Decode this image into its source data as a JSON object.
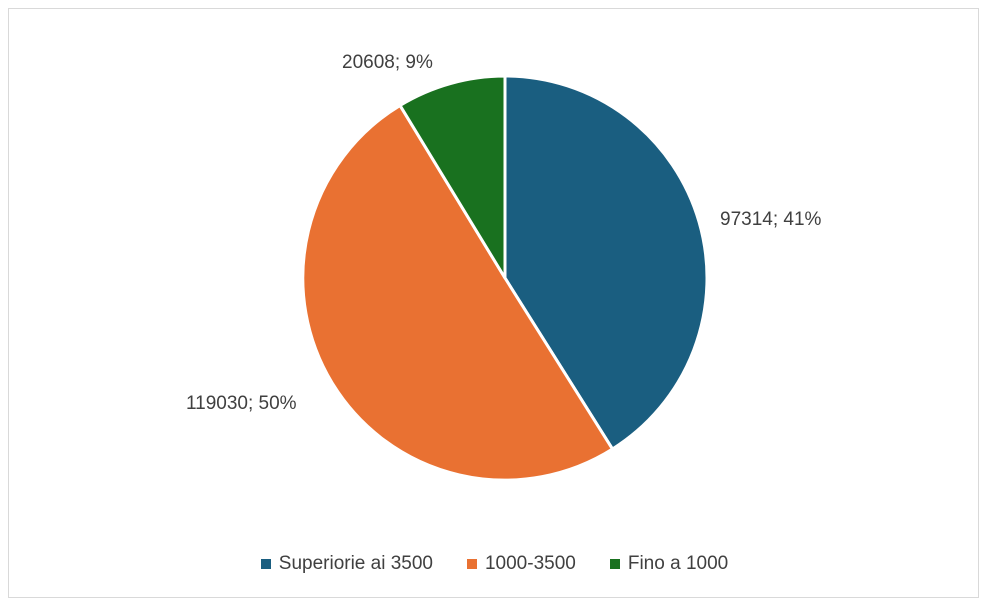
{
  "chart_data": {
    "type": "pie",
    "title": "",
    "series": [
      {
        "slices": [
          {
            "label": "Superiorie ai 3500",
            "value": 97314,
            "percent": 41,
            "data_label": "97314; 41%",
            "color": "#1a5e80"
          },
          {
            "label": "1000-3500",
            "value": 119030,
            "percent": 50,
            "data_label": "119030; 50%",
            "color": "#e97132"
          },
          {
            "label": "Fino a 1000",
            "value": 20608,
            "percent": 9,
            "data_label": "20608; 9%",
            "color": "#19711f"
          }
        ]
      }
    ],
    "legend_position": "bottom",
    "slice_border_color": "#ffffff"
  }
}
